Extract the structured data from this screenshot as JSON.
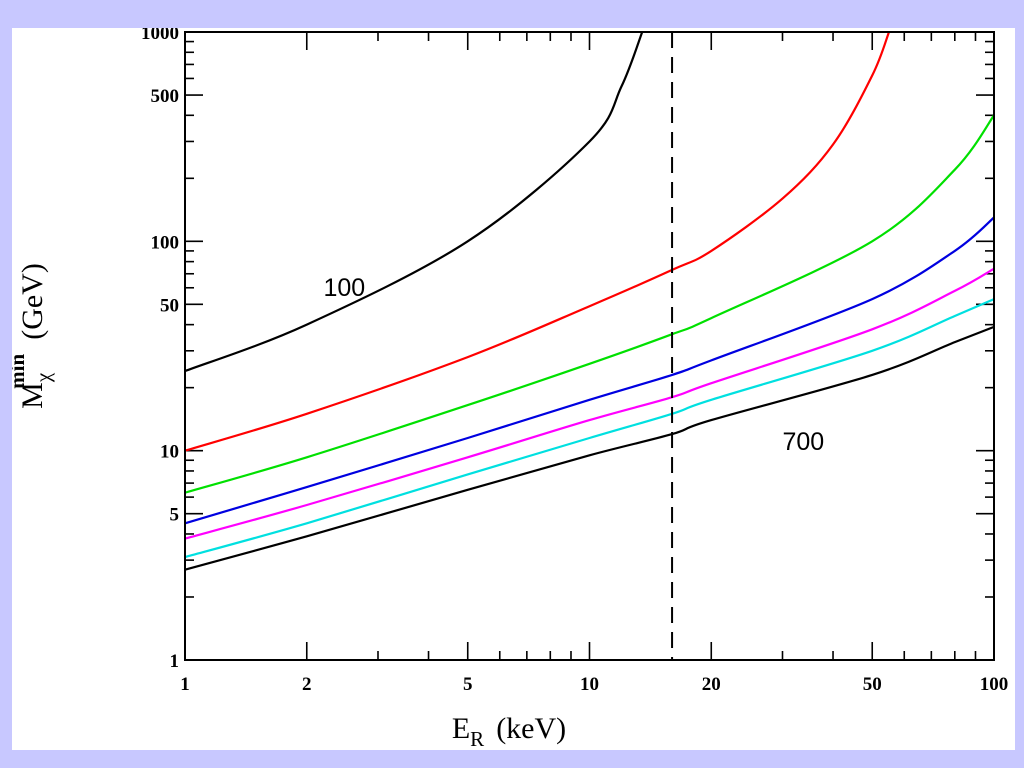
{
  "colors": {
    "page_background": "#c8c8ff",
    "panel_background": "#ffffff"
  },
  "chart_data": {
    "type": "line",
    "xscale": "log",
    "yscale": "log",
    "xlim": [
      1,
      100
    ],
    "ylim": [
      1,
      1000
    ],
    "grid": false,
    "xticks": [
      1,
      2,
      5,
      10,
      20,
      50,
      100
    ],
    "xtick_labels": [
      "1",
      "2",
      "5",
      "10",
      "20",
      "50",
      "100"
    ],
    "yticks": [
      1,
      5,
      10,
      50,
      100,
      500,
      1000
    ],
    "ytick_labels": [
      "1",
      "5",
      "10",
      "50",
      "100",
      "500",
      "1000"
    ],
    "xlabel": {
      "main": "E",
      "sub": "R",
      "unit": "(keV)"
    },
    "ylabel": {
      "main": "M",
      "sub": "χ",
      "sup": "min",
      "unit": "(GeV)"
    },
    "vline": {
      "x": 16,
      "style": "dashed"
    },
    "annotations": [
      {
        "text": "100",
        "x": 2.2,
        "y": 60
      },
      {
        "text": "700",
        "x": 30,
        "y": 11
      }
    ],
    "series": [
      {
        "color": "#000000",
        "x": [
          1,
          2,
          5,
          10,
          12,
          13.5
        ],
        "y": [
          24,
          40,
          100,
          300,
          550,
          1000
        ]
      },
      {
        "color": "#ff0000",
        "x": [
          1,
          2,
          5,
          10,
          16,
          20,
          30,
          40,
          50,
          55
        ],
        "y": [
          10,
          15,
          28,
          49,
          73,
          90,
          160,
          290,
          620,
          1000
        ]
      },
      {
        "color": "#00e000",
        "x": [
          1,
          2,
          5,
          10,
          16,
          20,
          50,
          80,
          100
        ],
        "y": [
          6.3,
          9.3,
          16.5,
          26,
          36,
          43,
          100,
          220,
          400
        ]
      },
      {
        "color": "#0000e0",
        "x": [
          1,
          2,
          5,
          10,
          16,
          20,
          50,
          80,
          100
        ],
        "y": [
          4.5,
          6.7,
          11.5,
          17.5,
          23,
          27,
          53,
          90,
          130
        ]
      },
      {
        "color": "#ff00ff",
        "x": [
          1,
          2,
          5,
          10,
          16,
          20,
          50,
          80,
          100
        ],
        "y": [
          3.8,
          5.5,
          9.3,
          14,
          18,
          21,
          38,
          58,
          74
        ]
      },
      {
        "color": "#00e0e0",
        "x": [
          1,
          2,
          5,
          10,
          16,
          20,
          50,
          80,
          100
        ],
        "y": [
          3.1,
          4.5,
          7.7,
          11.5,
          15,
          17.5,
          30,
          44,
          53
        ]
      },
      {
        "color": "#000000",
        "x": [
          1,
          2,
          5,
          10,
          16,
          20,
          50,
          80,
          100
        ],
        "y": [
          2.7,
          3.9,
          6.5,
          9.5,
          12,
          14,
          23,
          33,
          39
        ]
      }
    ]
  }
}
